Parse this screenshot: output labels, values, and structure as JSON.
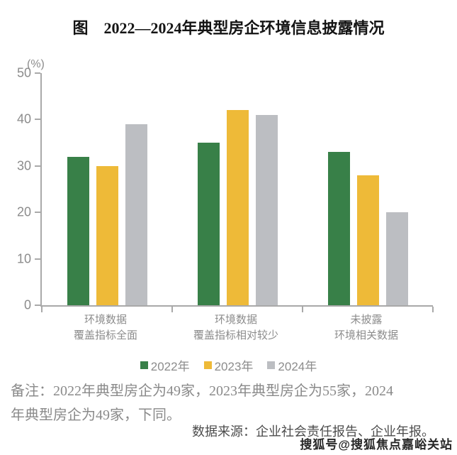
{
  "title": "图　2022—2024年典型房企环境信息披露情况",
  "chart_data": {
    "type": "bar",
    "unit_label": "(%)",
    "categories": [
      "环境数据\n覆盖指标全面",
      "环境数据\n覆盖指标相对较少",
      "未披露\n环境相关数据"
    ],
    "series": [
      {
        "name": "2022年",
        "color": "#388048",
        "values": [
          32,
          35,
          33
        ]
      },
      {
        "name": "2023年",
        "color": "#EEBA38",
        "values": [
          30,
          42,
          28
        ]
      },
      {
        "name": "2024年",
        "color": "#BCBEC2",
        "values": [
          39,
          41,
          20
        ]
      }
    ],
    "ylim": [
      0,
      50
    ],
    "yticks": [
      0,
      10,
      20,
      30,
      40,
      50
    ],
    "grid": false,
    "legend_position": "bottom",
    "axis_color": "#a9a9a9"
  },
  "notes": {
    "remark": "备注：2022年典型房企为49家，2023年典型房企为55家，2024\n年典型房企为49家，下同。",
    "source": "数据来源：企业社会责任报告、企业年报。"
  },
  "watermark": "搜狐号@搜狐焦点嘉峪关站"
}
